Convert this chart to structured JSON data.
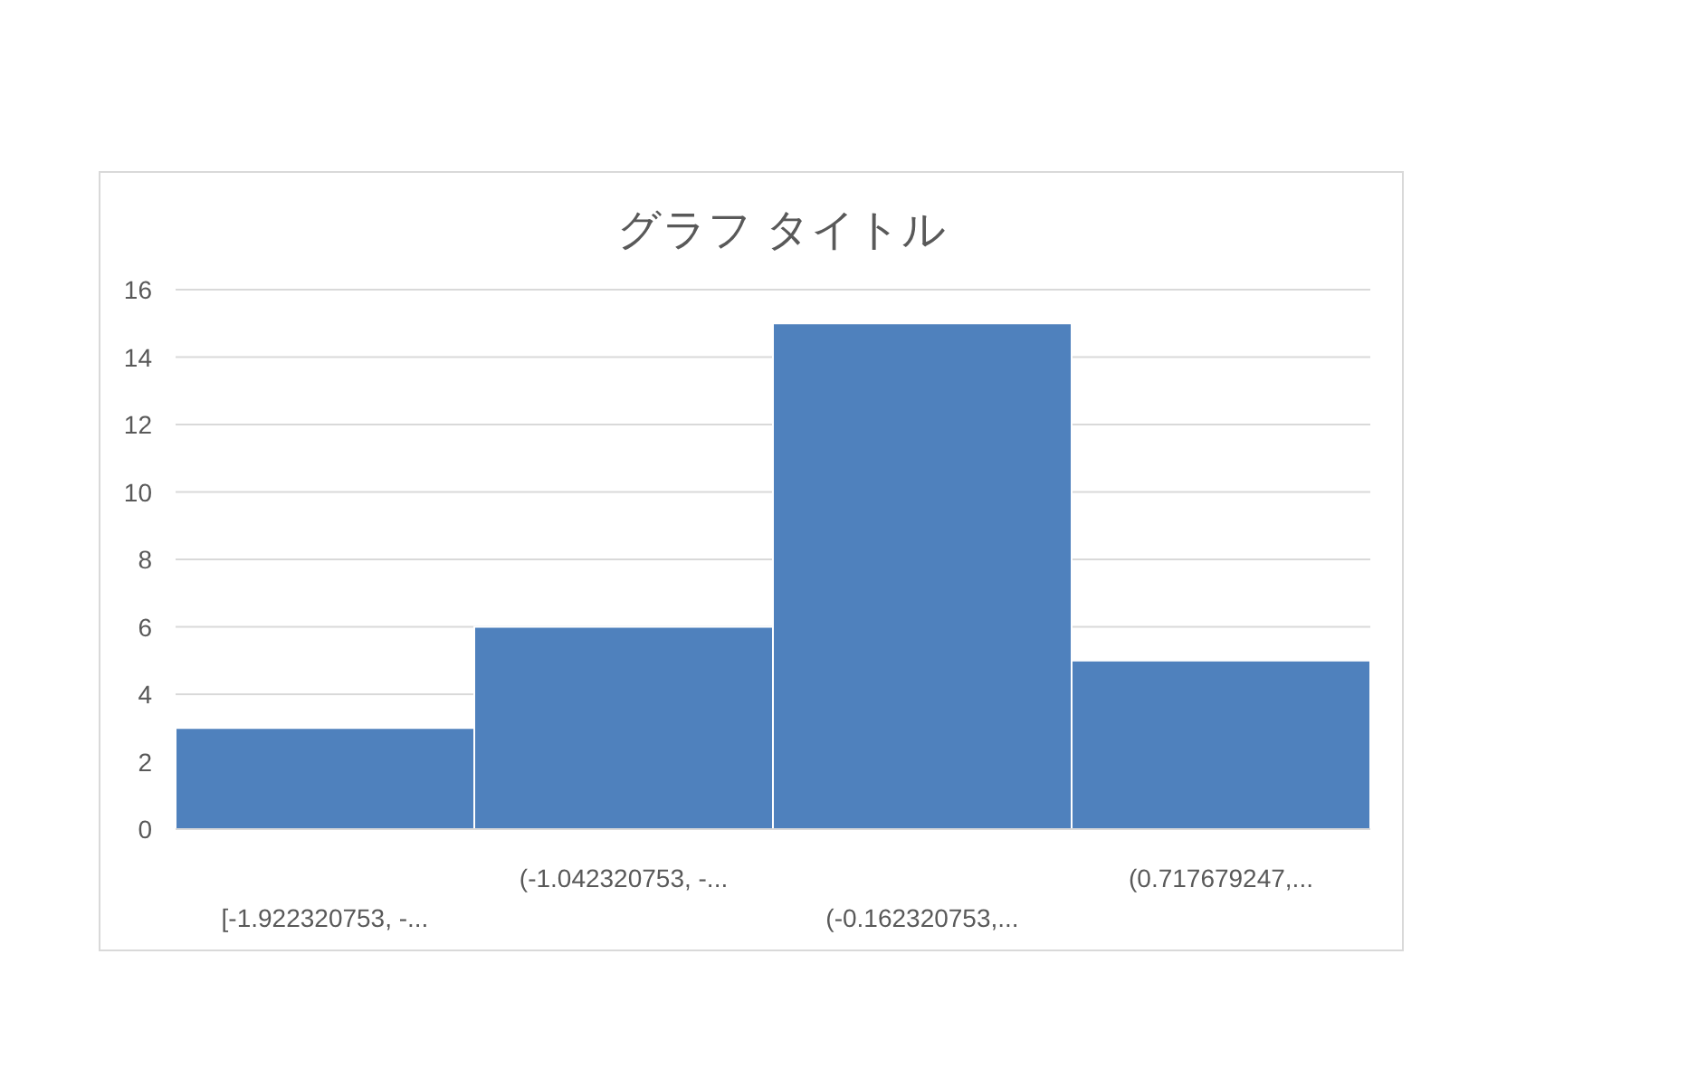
{
  "chart_data": {
    "type": "bar",
    "title": "グラフ タイトル",
    "categories": [
      "[-1.922320753, -...",
      "(-1.042320753, -...",
      "(-0.162320753,...",
      "(0.717679247,..."
    ],
    "values": [
      3,
      6,
      15,
      5
    ],
    "color": "#4f81bd",
    "ylim": [
      0,
      16
    ],
    "yticks": [
      0,
      2,
      4,
      6,
      8,
      10,
      12,
      14,
      16
    ],
    "grid": "y"
  }
}
